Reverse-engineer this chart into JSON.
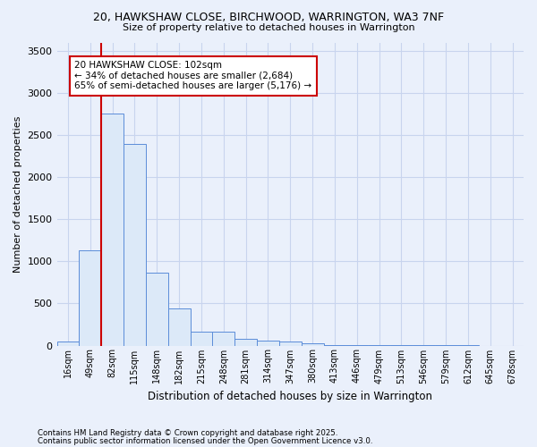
{
  "title1": "20, HAWKSHAW CLOSE, BIRCHWOOD, WARRINGTON, WA3 7NF",
  "title2": "Size of property relative to detached houses in Warrington",
  "xlabel": "Distribution of detached houses by size in Warrington",
  "ylabel": "Number of detached properties",
  "footnote1": "Contains HM Land Registry data © Crown copyright and database right 2025.",
  "footnote2": "Contains public sector information licensed under the Open Government Licence v3.0.",
  "bin_labels": [
    "16sqm",
    "49sqm",
    "82sqm",
    "115sqm",
    "148sqm",
    "182sqm",
    "215sqm",
    "248sqm",
    "281sqm",
    "314sqm",
    "347sqm",
    "380sqm",
    "413sqm",
    "446sqm",
    "479sqm",
    "513sqm",
    "546sqm",
    "579sqm",
    "612sqm",
    "645sqm",
    "678sqm"
  ],
  "bar_values": [
    50,
    1130,
    2760,
    2400,
    870,
    440,
    170,
    160,
    80,
    60,
    45,
    30,
    10,
    5,
    3,
    2,
    1,
    1,
    1,
    0,
    0
  ],
  "bar_color": "#dce9f8",
  "bar_edge_color": "#5b8dd9",
  "background_color": "#eaf0fb",
  "grid_color": "#c8d4ee",
  "vline_color": "#cc0000",
  "vline_x": 2.0,
  "annotation_text": "20 HAWKSHAW CLOSE: 102sqm\n← 34% of detached houses are smaller (2,684)\n65% of semi-detached houses are larger (5,176) →",
  "annotation_box_color": "#ffffff",
  "annotation_box_edge": "#cc0000",
  "ylim": [
    0,
    3600
  ],
  "yticks": [
    0,
    500,
    1000,
    1500,
    2000,
    2500,
    3000,
    3500
  ]
}
